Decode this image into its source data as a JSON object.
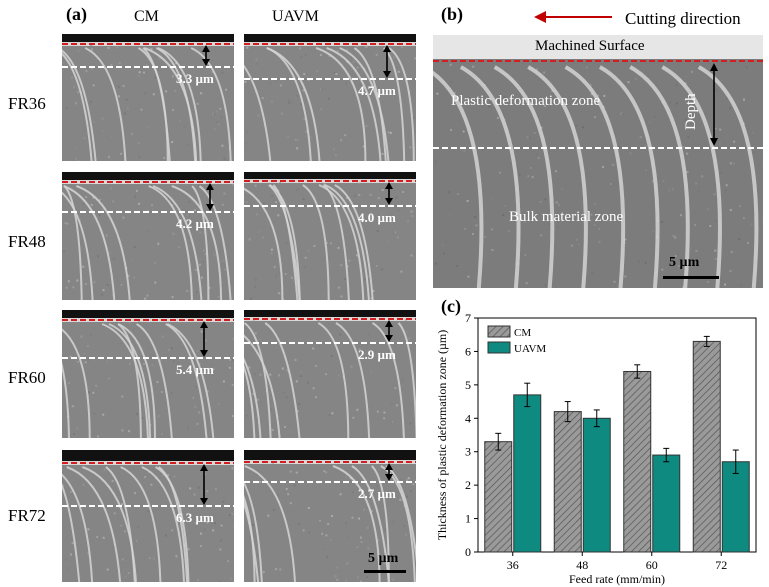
{
  "panel_a": {
    "label": "(a)",
    "col_cm": "CM",
    "col_uavm": "UAVM",
    "rows": [
      {
        "label": "FR36",
        "cm_depth": "3.3 µm",
        "uavm_depth": "4.7 µm"
      },
      {
        "label": "FR48",
        "cm_depth": "4.2 µm",
        "uavm_depth": "4.0 µm"
      },
      {
        "label": "FR60",
        "cm_depth": "5.4 µm",
        "uavm_depth": "2.9 µm"
      },
      {
        "label": "FR72",
        "cm_depth": "6.3 µm",
        "uavm_depth": "2.7 µm"
      }
    ],
    "scale_bar": "5 µm"
  },
  "panel_b": {
    "label": "(b)",
    "cutting_direction": "Cutting direction",
    "machined_surface": "Machined Surface",
    "plastic_zone": "Plastic deformation zone",
    "bulk_zone": "Bulk material zone",
    "depth": "Depth",
    "scale_bar": "5 µm"
  },
  "panel_c": {
    "label": "(c)"
  },
  "colors": {
    "cm_bar": "#9a9a9a",
    "uavm_bar": "#0e8a80",
    "surface_line": "#d21e1e",
    "arrow": "#c00000"
  },
  "chart_data": {
    "type": "bar",
    "categories": [
      "36",
      "48",
      "60",
      "72"
    ],
    "series": [
      {
        "name": "CM",
        "values": [
          3.3,
          4.2,
          5.4,
          6.3
        ],
        "errors": [
          0.25,
          0.3,
          0.2,
          0.15
        ]
      },
      {
        "name": "UAVM",
        "values": [
          4.7,
          4.0,
          2.9,
          2.7
        ],
        "errors": [
          0.35,
          0.25,
          0.2,
          0.35
        ]
      }
    ],
    "xlabel": "Feed rate (mm/min)",
    "ylabel": "Thickness of plastic deformation zone (µm)",
    "ylim": [
      0,
      7
    ],
    "yticks": [
      0,
      1,
      2,
      3,
      4,
      5,
      6,
      7
    ],
    "legend": "top-left",
    "grid": false
  }
}
